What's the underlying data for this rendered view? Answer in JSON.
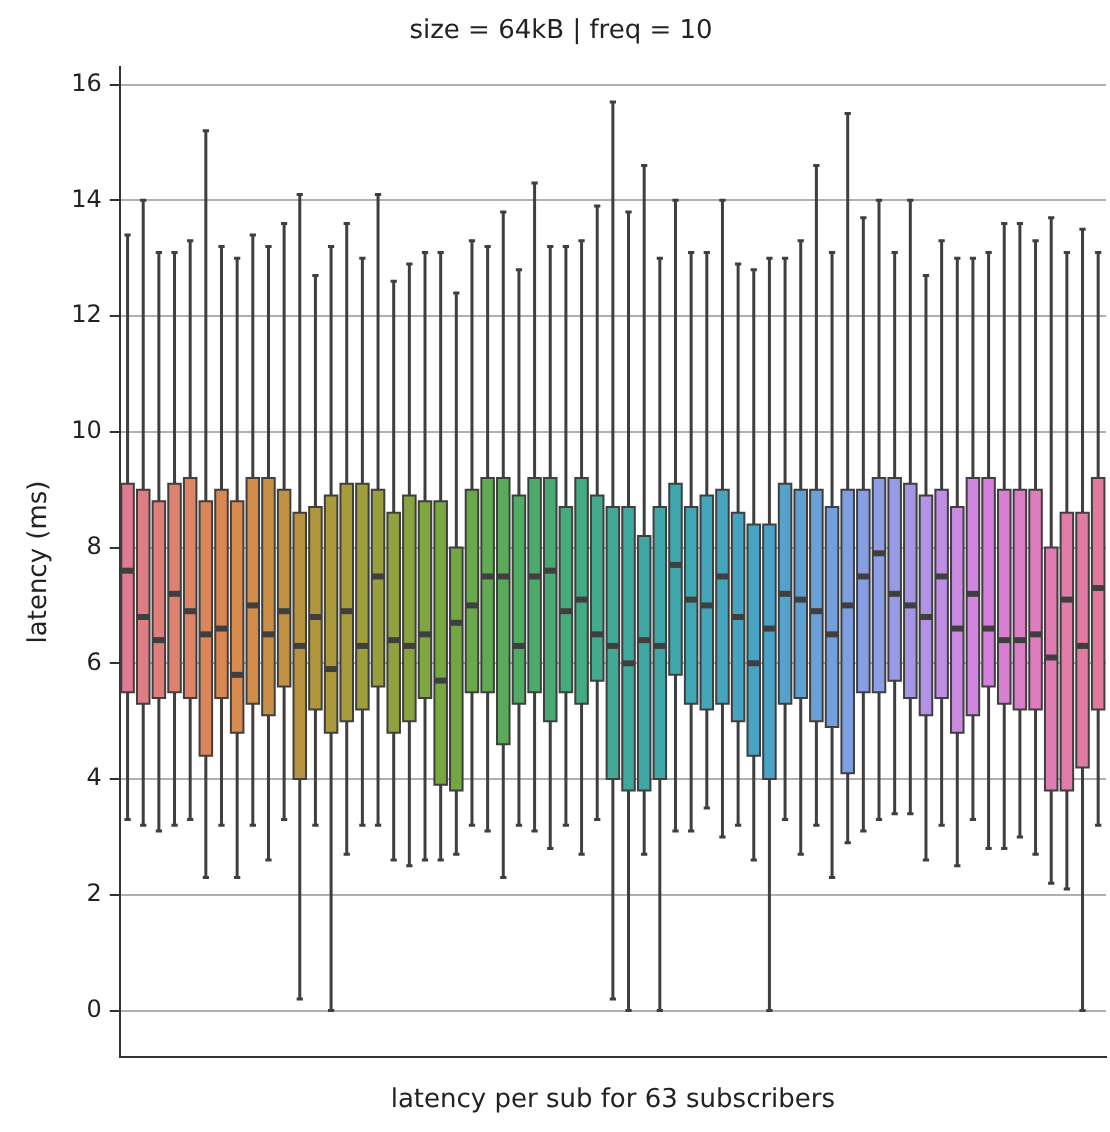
{
  "chart_data": {
    "type": "box",
    "title": "size = 64kB | freq = 10",
    "xlabel": "latency per sub for 63 subscribers",
    "ylabel": "latency (ms)",
    "categories": [
      null,
      null,
      null,
      null,
      null,
      null,
      null,
      null,
      null,
      null,
      null,
      null,
      null,
      null,
      null,
      null,
      null,
      null,
      null,
      null,
      null,
      null,
      null,
      null,
      null,
      null,
      null,
      null,
      null,
      null,
      null,
      null,
      null,
      null,
      null,
      null,
      null,
      null,
      null,
      null,
      null,
      null,
      null,
      null,
      null,
      null,
      null,
      null,
      null,
      null,
      null,
      null,
      null,
      null,
      null,
      null,
      null,
      null,
      null,
      null,
      null,
      null,
      null
    ],
    "ylim": [
      -0.8,
      16.3
    ],
    "yticks": [
      0,
      2,
      4,
      6,
      8,
      10,
      12,
      14,
      16
    ],
    "grid": "y",
    "tick_labels": "y",
    "colors": [
      "#e07b91",
      "#df7d86",
      "#de7f7b",
      "#dd8170",
      "#dc8465",
      "#da865a",
      "#d98853",
      "#d88a4f",
      "#d08c4b",
      "#c98f47",
      "#c19143",
      "#b99440",
      "#b0963d",
      "#ac993b",
      "#a89b3a",
      "#a09d3b",
      "#989f3c",
      "#90a13e",
      "#88a33f",
      "#80a541",
      "#79a742",
      "#72a844",
      "#6aa94b",
      "#62aa53",
      "#5aaa5a",
      "#52ab63",
      "#4cab6b",
      "#48ab73",
      "#45ab7a",
      "#44aa84",
      "#43aa8d",
      "#42a996",
      "#41a99f",
      "#40a8a4",
      "#40a8a8",
      "#3fa8ad",
      "#41a7b3",
      "#43a6b8",
      "#45a5bd",
      "#47a4c1",
      "#49a4c4",
      "#4ba3c7",
      "#55a2cd",
      "#5fa1d3",
      "#69a0d8",
      "#73a0dc",
      "#7d9fe0",
      "#879ee4",
      "#8d9ee6",
      "#999ae6",
      "#a596e5",
      "#b192e4",
      "#bd8ee2",
      "#c98ae0",
      "#d085de",
      "#d580dc",
      "#d97fd2",
      "#dc7ec7",
      "#de7dbc",
      "#df7cb1",
      "#e07ca7",
      "#e07ba2",
      "#e07b9e"
    ],
    "boxes": [
      {
        "low": 3.3,
        "q1": 5.5,
        "median": 7.6,
        "q3": 9.1,
        "high": 13.4
      },
      {
        "low": 3.2,
        "q1": 5.3,
        "median": 6.8,
        "q3": 9.0,
        "high": 14.0
      },
      {
        "low": 3.1,
        "q1": 5.4,
        "median": 6.4,
        "q3": 8.8,
        "high": 13.1
      },
      {
        "low": 3.2,
        "q1": 5.5,
        "median": 7.2,
        "q3": 9.1,
        "high": 13.1
      },
      {
        "low": 3.3,
        "q1": 5.4,
        "median": 6.9,
        "q3": 9.2,
        "high": 13.3
      },
      {
        "low": 2.3,
        "q1": 4.4,
        "median": 6.5,
        "q3": 8.8,
        "high": 15.2
      },
      {
        "low": 3.2,
        "q1": 5.4,
        "median": 6.6,
        "q3": 9.0,
        "high": 13.2
      },
      {
        "low": 2.3,
        "q1": 4.8,
        "median": 5.8,
        "q3": 8.8,
        "high": 13.0
      },
      {
        "low": 3.2,
        "q1": 5.3,
        "median": 7.0,
        "q3": 9.2,
        "high": 13.4
      },
      {
        "low": 2.6,
        "q1": 5.1,
        "median": 6.5,
        "q3": 9.2,
        "high": 13.2
      },
      {
        "low": 3.3,
        "q1": 5.6,
        "median": 6.9,
        "q3": 9.0,
        "high": 13.6
      },
      {
        "low": 0.2,
        "q1": 4.0,
        "median": 6.3,
        "q3": 8.6,
        "high": 14.1
      },
      {
        "low": 3.2,
        "q1": 5.2,
        "median": 6.8,
        "q3": 8.7,
        "high": 12.7
      },
      {
        "low": 0.0,
        "q1": 4.8,
        "median": 5.9,
        "q3": 8.9,
        "high": 13.2
      },
      {
        "low": 2.7,
        "q1": 5.0,
        "median": 6.9,
        "q3": 9.1,
        "high": 13.6
      },
      {
        "low": 3.2,
        "q1": 5.2,
        "median": 6.3,
        "q3": 9.1,
        "high": 13.0
      },
      {
        "low": 3.2,
        "q1": 5.6,
        "median": 7.5,
        "q3": 9.0,
        "high": 14.1
      },
      {
        "low": 2.6,
        "q1": 4.8,
        "median": 6.4,
        "q3": 8.6,
        "high": 12.6
      },
      {
        "low": 2.5,
        "q1": 5.0,
        "median": 6.3,
        "q3": 8.9,
        "high": 12.9
      },
      {
        "low": 2.6,
        "q1": 5.4,
        "median": 6.5,
        "q3": 8.8,
        "high": 13.1
      },
      {
        "low": 2.6,
        "q1": 3.9,
        "median": 5.7,
        "q3": 8.8,
        "high": 13.1
      },
      {
        "low": 2.7,
        "q1": 3.8,
        "median": 6.7,
        "q3": 8.0,
        "high": 12.4
      },
      {
        "low": 3.2,
        "q1": 5.5,
        "median": 7.0,
        "q3": 9.0,
        "high": 13.3
      },
      {
        "low": 3.1,
        "q1": 5.5,
        "median": 7.5,
        "q3": 9.2,
        "high": 13.2
      },
      {
        "low": 2.3,
        "q1": 4.6,
        "median": 7.5,
        "q3": 9.2,
        "high": 13.8
      },
      {
        "low": 3.2,
        "q1": 5.3,
        "median": 6.3,
        "q3": 8.9,
        "high": 12.8
      },
      {
        "low": 3.1,
        "q1": 5.5,
        "median": 7.5,
        "q3": 9.2,
        "high": 14.3
      },
      {
        "low": 2.8,
        "q1": 5.0,
        "median": 7.6,
        "q3": 9.2,
        "high": 13.2
      },
      {
        "low": 3.2,
        "q1": 5.5,
        "median": 6.9,
        "q3": 8.7,
        "high": 13.2
      },
      {
        "low": 2.7,
        "q1": 5.3,
        "median": 7.1,
        "q3": 9.2,
        "high": 13.3
      },
      {
        "low": 3.3,
        "q1": 5.7,
        "median": 6.5,
        "q3": 8.9,
        "high": 13.9
      },
      {
        "low": 0.2,
        "q1": 4.0,
        "median": 6.3,
        "q3": 8.7,
        "high": 15.7
      },
      {
        "low": 0.0,
        "q1": 3.8,
        "median": 6.0,
        "q3": 8.7,
        "high": 13.8
      },
      {
        "low": 2.7,
        "q1": 3.8,
        "median": 6.4,
        "q3": 8.2,
        "high": 14.6
      },
      {
        "low": 0.0,
        "q1": 4.0,
        "median": 6.3,
        "q3": 8.7,
        "high": 13.0
      },
      {
        "low": 3.1,
        "q1": 5.8,
        "median": 7.7,
        "q3": 9.1,
        "high": 14.0
      },
      {
        "low": 3.1,
        "q1": 5.3,
        "median": 7.1,
        "q3": 8.7,
        "high": 13.1
      },
      {
        "low": 3.5,
        "q1": 5.2,
        "median": 7.0,
        "q3": 8.9,
        "high": 13.1
      },
      {
        "low": 3.0,
        "q1": 5.3,
        "median": 7.5,
        "q3": 9.0,
        "high": 14.0
      },
      {
        "low": 3.2,
        "q1": 5.0,
        "median": 6.8,
        "q3": 8.6,
        "high": 12.9
      },
      {
        "low": 2.6,
        "q1": 4.4,
        "median": 6.0,
        "q3": 8.4,
        "high": 12.8
      },
      {
        "low": 0.0,
        "q1": 4.0,
        "median": 6.6,
        "q3": 8.4,
        "high": 13.0
      },
      {
        "low": 3.3,
        "q1": 5.3,
        "median": 7.2,
        "q3": 9.1,
        "high": 13.0
      },
      {
        "low": 2.7,
        "q1": 5.4,
        "median": 7.1,
        "q3": 9.0,
        "high": 13.3
      },
      {
        "low": 3.2,
        "q1": 5.0,
        "median": 6.9,
        "q3": 9.0,
        "high": 14.6
      },
      {
        "low": 2.3,
        "q1": 4.9,
        "median": 6.5,
        "q3": 8.7,
        "high": 13.1
      },
      {
        "low": 2.9,
        "q1": 4.1,
        "median": 7.0,
        "q3": 9.0,
        "high": 15.5
      },
      {
        "low": 3.1,
        "q1": 5.5,
        "median": 7.5,
        "q3": 9.0,
        "high": 13.7
      },
      {
        "low": 3.3,
        "q1": 5.5,
        "median": 7.9,
        "q3": 9.2,
        "high": 14.0
      },
      {
        "low": 3.4,
        "q1": 5.7,
        "median": 7.2,
        "q3": 9.2,
        "high": 13.1
      },
      {
        "low": 3.4,
        "q1": 5.4,
        "median": 7.0,
        "q3": 9.1,
        "high": 14.0
      },
      {
        "low": 2.6,
        "q1": 5.1,
        "median": 6.8,
        "q3": 8.9,
        "high": 12.7
      },
      {
        "low": 3.2,
        "q1": 5.4,
        "median": 7.5,
        "q3": 9.0,
        "high": 13.3
      },
      {
        "low": 2.5,
        "q1": 4.8,
        "median": 6.6,
        "q3": 8.7,
        "high": 13.0
      },
      {
        "low": 3.3,
        "q1": 5.1,
        "median": 7.2,
        "q3": 9.2,
        "high": 13.0
      },
      {
        "low": 2.8,
        "q1": 5.6,
        "median": 6.6,
        "q3": 9.2,
        "high": 13.1
      },
      {
        "low": 2.8,
        "q1": 5.3,
        "median": 6.4,
        "q3": 9.0,
        "high": 13.6
      },
      {
        "low": 3.0,
        "q1": 5.2,
        "median": 6.4,
        "q3": 9.0,
        "high": 13.6
      },
      {
        "low": 2.7,
        "q1": 5.2,
        "median": 6.5,
        "q3": 9.0,
        "high": 13.3
      },
      {
        "low": 2.2,
        "q1": 3.8,
        "median": 6.1,
        "q3": 8.0,
        "high": 13.7
      },
      {
        "low": 2.1,
        "q1": 3.8,
        "median": 7.1,
        "q3": 8.6,
        "high": 13.1
      },
      {
        "low": 0.0,
        "q1": 4.2,
        "median": 6.3,
        "q3": 8.6,
        "high": 13.5
      },
      {
        "low": 3.2,
        "q1": 5.2,
        "median": 7.3,
        "q3": 9.2,
        "high": 13.1
      }
    ]
  }
}
